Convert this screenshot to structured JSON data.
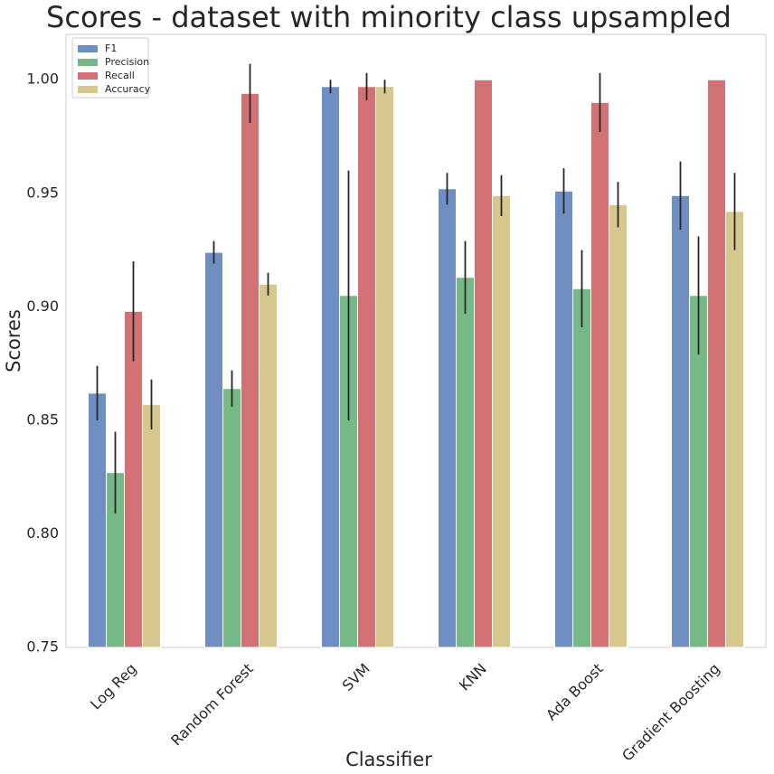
{
  "chart_data": {
    "type": "bar",
    "title": "Scores - dataset with minority class upsampled",
    "xlabel": "Classifier",
    "ylabel": "Scores",
    "ylim": [
      0.75,
      1.02
    ],
    "yticks": [
      "0.75",
      "0.80",
      "0.85",
      "0.90",
      "0.95",
      "1.00"
    ],
    "grid": false,
    "legend_position": "top-left",
    "categories": [
      "Log Reg",
      "Random Forest",
      "SVM",
      "KNN",
      "Ada Boost",
      "Gradient Boosting"
    ],
    "series": [
      {
        "name": "F1",
        "color": "#6f8fc3",
        "values": [
          0.862,
          0.924,
          0.997,
          0.952,
          0.951,
          0.949
        ],
        "errors": [
          0.012,
          0.005,
          0.003,
          0.007,
          0.01,
          0.015
        ]
      },
      {
        "name": "Precision",
        "color": "#77b986",
        "values": [
          0.827,
          0.864,
          0.905,
          0.913,
          0.908,
          0.905
        ],
        "errors": [
          0.018,
          0.008,
          0.055,
          0.016,
          0.017,
          0.026
        ]
      },
      {
        "name": "Recall",
        "color": "#d37274",
        "values": [
          0.898,
          0.994,
          0.997,
          1.0,
          0.99,
          1.0
        ],
        "errors": [
          0.022,
          0.013,
          0.006,
          0.0,
          0.013,
          0.0
        ]
      },
      {
        "name": "Accuracy",
        "color": "#d6c78d",
        "values": [
          0.857,
          0.91,
          0.997,
          0.949,
          0.945,
          0.942
        ],
        "errors": [
          0.011,
          0.005,
          0.003,
          0.009,
          0.01,
          0.017
        ]
      }
    ]
  }
}
